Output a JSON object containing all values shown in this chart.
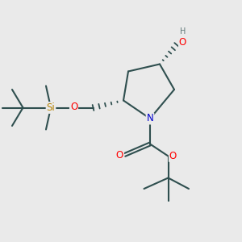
{
  "bg_color": "#eaeaea",
  "atom_colors": {
    "C": "#2f4f4f",
    "N": "#0000cd",
    "O": "#ff0000",
    "Si": "#b8860b",
    "H": "#607878"
  },
  "bond_color": "#2f4f4f",
  "bond_width": 1.5
}
